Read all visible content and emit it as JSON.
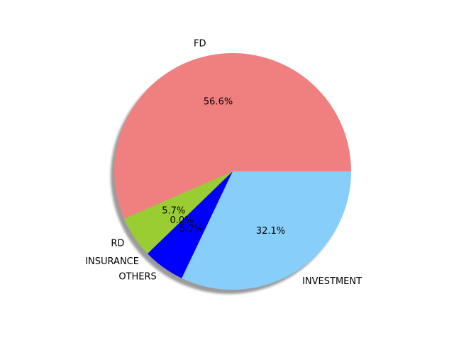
{
  "chart_data": {
    "type": "pie",
    "title": "",
    "categories": [
      "FD",
      "RD",
      "INSURANCE",
      "OTHERS",
      "INVESTMENT"
    ],
    "values": [
      56.6,
      5.7,
      0.0,
      5.7,
      32.1
    ],
    "percent_labels": [
      "56.6%",
      "5.7%",
      "0.0%",
      "5.7%",
      "32.1%"
    ],
    "colors": [
      "#f08080",
      "#9acd32",
      "#ffd700",
      "#0000ff",
      "#87cefa"
    ],
    "shadow": true,
    "legend": "none",
    "start_angle_deg": 0
  }
}
